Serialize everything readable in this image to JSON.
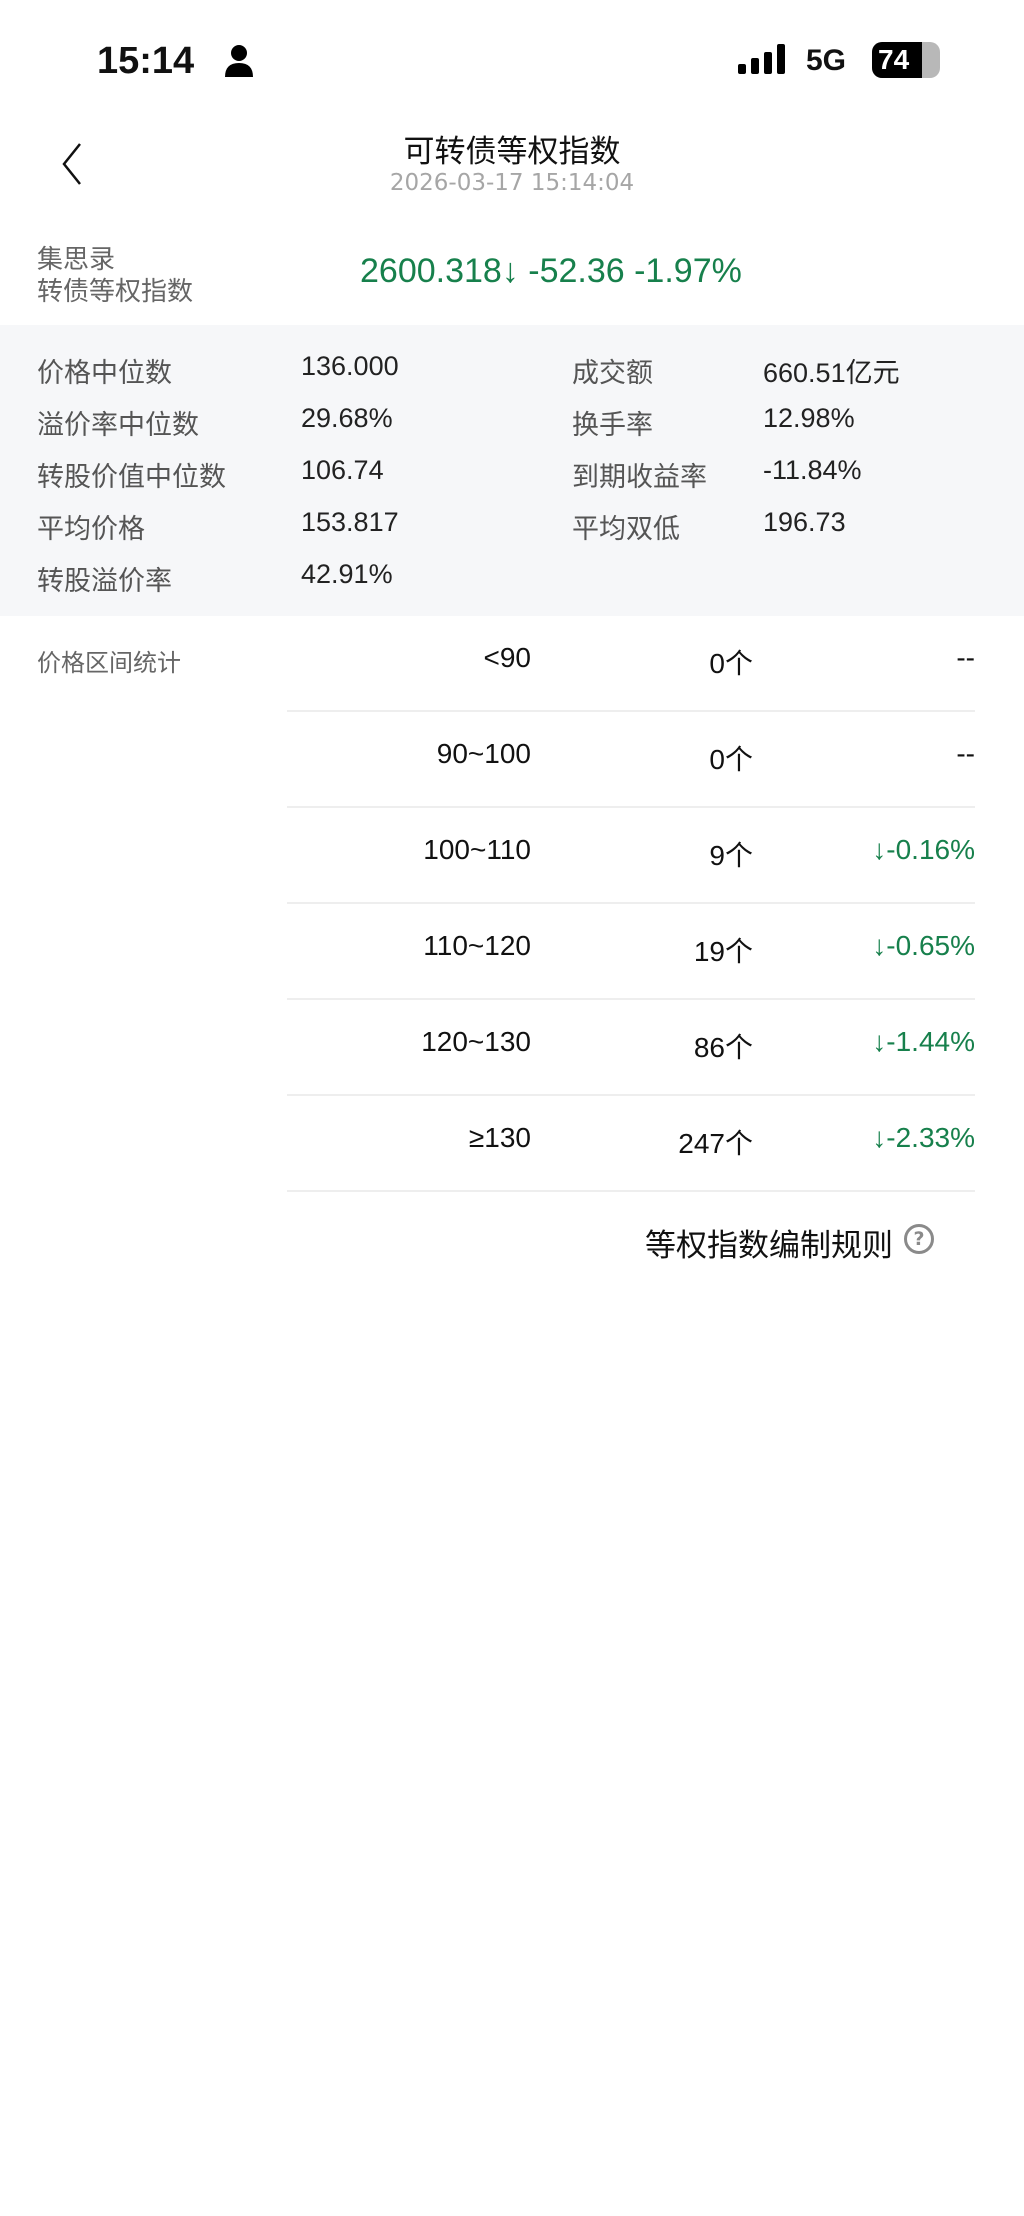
{
  "status_bar": {
    "time": "15:14",
    "network": "5G",
    "battery": "74",
    "battery_level": 0.74
  },
  "header": {
    "title": "可转债等权指数",
    "timestamp": "2026-03-17 15:14:04"
  },
  "index": {
    "label_line1": "集思录",
    "label_line2": "转债等权指数",
    "value": "2600.318↓ -52.36 -1.97%",
    "color": "#17804c"
  },
  "stats": [
    {
      "label": "价格中位数",
      "value": "136.000"
    },
    {
      "label": "溢价率中位数",
      "value": "29.68%"
    },
    {
      "label": "转股价值中位数",
      "value": "106.74"
    },
    {
      "label": "平均价格",
      "value": "153.817"
    },
    {
      "label": "转股溢价率",
      "value": "42.91%"
    },
    {
      "label": "成交额",
      "value": "660.51亿元"
    },
    {
      "label": "换手率",
      "value": "12.98%"
    },
    {
      "label": "到期收益率",
      "value": "-11.84%"
    },
    {
      "label": "平均双低",
      "value": "196.73"
    }
  ],
  "price_ranges": {
    "label": "价格区间统计",
    "rows": [
      {
        "range": "<90",
        "count": "0个",
        "change": "--"
      },
      {
        "range": "90~100",
        "count": "0个",
        "change": "--"
      },
      {
        "range": "100~110",
        "count": "9个",
        "change": "↓-0.16%"
      },
      {
        "range": "110~120",
        "count": "19个",
        "change": "↓-0.65%"
      },
      {
        "range": "120~130",
        "count": "86个",
        "change": "↓-1.44%"
      },
      {
        "range": "≥130",
        "count": "247个",
        "change": "↓-2.33%"
      }
    ]
  },
  "footer": {
    "rules_link": "等权指数编制规则",
    "help_icon": "?"
  }
}
